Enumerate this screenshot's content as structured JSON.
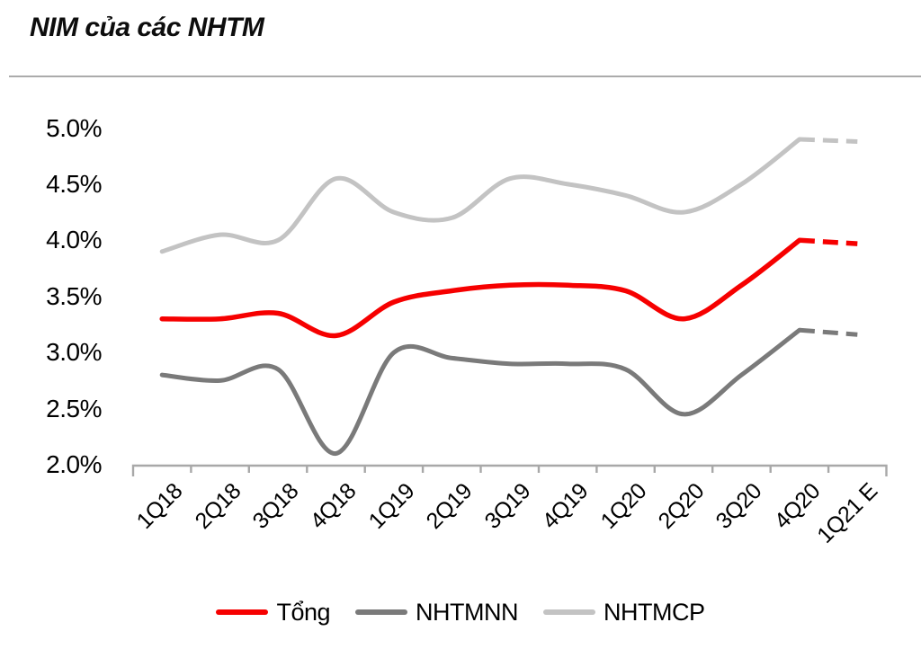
{
  "title": "NIM của các NHTM",
  "colors": {
    "axis": "#a8a8a8",
    "separator": "#ababab",
    "text": "#000000",
    "accent_red": "#f60000",
    "dark_gray": "#7a7a7a",
    "light_gray": "#c3c3c3"
  },
  "chart_data": {
    "type": "line",
    "title": "NIM của các NHTM",
    "categories": [
      "1Q18",
      "2Q18",
      "3Q18",
      "4Q18",
      "1Q19",
      "2Q19",
      "3Q19",
      "4Q19",
      "1Q20",
      "2Q20",
      "3Q20",
      "4Q20",
      "1Q21 E"
    ],
    "series": [
      {
        "key": "tong",
        "name": "Tổng",
        "color": "#f60000",
        "values": [
          3.3,
          3.3,
          3.35,
          3.15,
          3.45,
          3.55,
          3.6,
          3.6,
          3.55,
          3.3,
          3.6,
          4.0,
          3.97
        ],
        "dashed_from_index": 11
      },
      {
        "key": "nhtmnn",
        "name": "NHTMNN",
        "color": "#7a7a7a",
        "values": [
          2.8,
          2.75,
          2.85,
          2.1,
          3.0,
          2.95,
          2.9,
          2.9,
          2.85,
          2.45,
          2.8,
          3.2,
          3.16
        ],
        "dashed_from_index": 11
      },
      {
        "key": "nhtmcp",
        "name": "NHTMCP",
        "color": "#c3c3c3",
        "values": [
          3.9,
          4.05,
          4.0,
          4.55,
          4.25,
          4.2,
          4.55,
          4.5,
          4.4,
          4.25,
          4.5,
          4.9,
          4.88
        ],
        "dashed_from_index": 11
      }
    ],
    "y_ticks": [
      {
        "label": "5.0%",
        "value": 5.0
      },
      {
        "label": "4.5%",
        "value": 4.5
      },
      {
        "label": "4.0%",
        "value": 4.0
      },
      {
        "label": "3.5%",
        "value": 3.5
      },
      {
        "label": "3.0%",
        "value": 3.0
      },
      {
        "label": "2.5%",
        "value": 2.5
      },
      {
        "label": "2.0%",
        "value": 2.0
      }
    ],
    "ylim": [
      2.0,
      5.0
    ],
    "grid": false,
    "legend_position": "bottom",
    "x_labels_rotation_deg": -45
  }
}
